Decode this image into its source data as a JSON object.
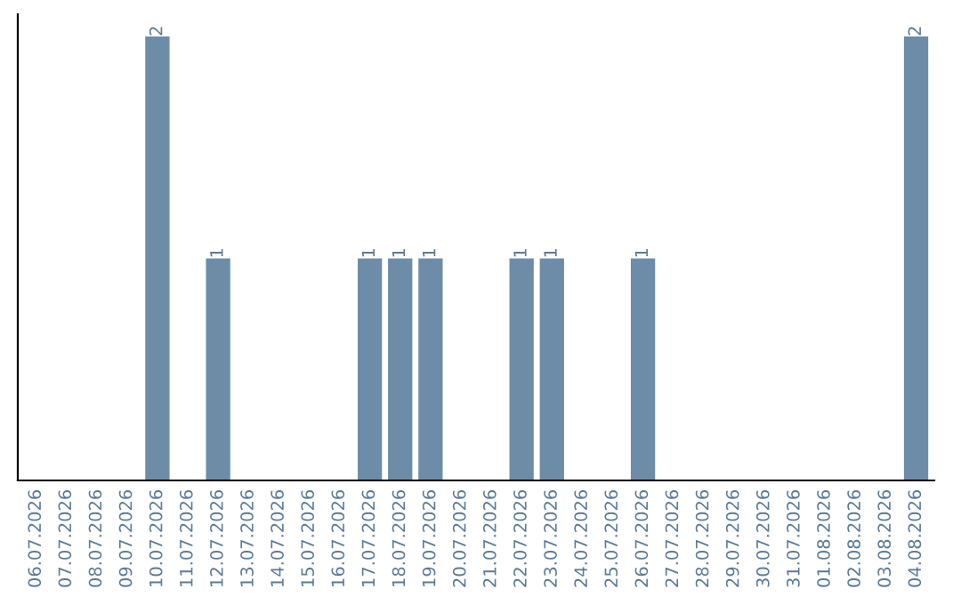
{
  "chart_data": {
    "type": "bar",
    "categories": [
      "06.07.2026",
      "07.07.2026",
      "08.07.2026",
      "09.07.2026",
      "10.07.2026",
      "11.07.2026",
      "12.07.2026",
      "13.07.2026",
      "14.07.2026",
      "15.07.2026",
      "16.07.2026",
      "17.07.2026",
      "18.07.2026",
      "19.07.2026",
      "20.07.2026",
      "21.07.2026",
      "22.07.2026",
      "23.07.2026",
      "24.07.2026",
      "25.07.2026",
      "26.07.2026",
      "27.07.2026",
      "28.07.2026",
      "29.07.2026",
      "30.07.2026",
      "31.07.2026",
      "01.08.2026",
      "02.08.2026",
      "03.08.2026",
      "04.08.2026"
    ],
    "values": [
      0,
      0,
      0,
      0,
      2,
      0,
      1,
      0,
      0,
      0,
      0,
      1,
      1,
      1,
      0,
      0,
      1,
      1,
      0,
      0,
      1,
      0,
      0,
      0,
      0,
      0,
      0,
      0,
      0,
      2
    ],
    "value_labels": [
      null,
      null,
      null,
      null,
      "2",
      null,
      "1",
      null,
      null,
      null,
      null,
      "1",
      "1",
      "1",
      null,
      null,
      "1",
      "1",
      null,
      null,
      "1",
      null,
      null,
      null,
      null,
      null,
      null,
      null,
      null,
      "2"
    ],
    "color": "#6d8ca8",
    "grid": false,
    "tick_labels": "x"
  }
}
